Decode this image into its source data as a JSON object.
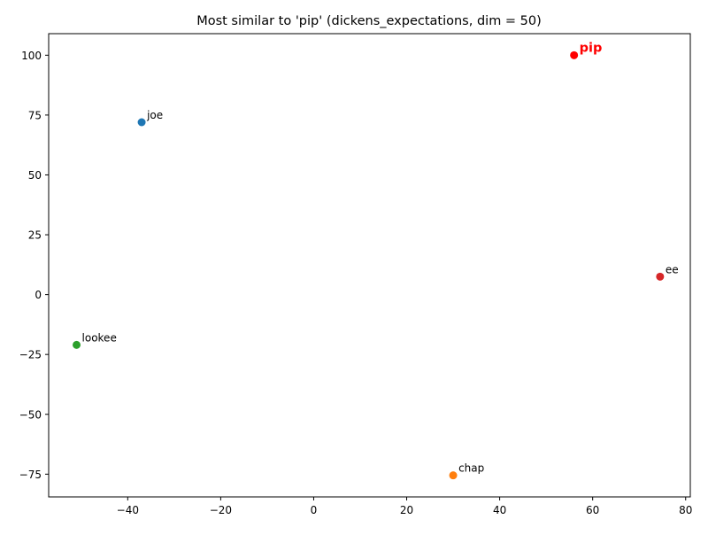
{
  "chart_data": {
    "type": "scatter",
    "title": "Most similar to 'pip' (dickens_expectations, dim = 50)",
    "xlabel": "",
    "ylabel": "",
    "xlim": [
      -57,
      81
    ],
    "ylim": [
      -84.5,
      109
    ],
    "grid": false,
    "legend": "none",
    "x_ticks": [
      -40,
      -20,
      0,
      20,
      40,
      60,
      80
    ],
    "y_ticks": [
      -75,
      -50,
      -25,
      0,
      25,
      50,
      75,
      100
    ],
    "x_tick_labels": [
      "−40",
      "−20",
      "0",
      "20",
      "40",
      "60",
      "80"
    ],
    "y_tick_labels": [
      "−75",
      "−50",
      "−25",
      "0",
      "25",
      "50",
      "75",
      "100"
    ],
    "points": [
      {
        "label": "joe",
        "x": -37,
        "y": 72,
        "color": "#1f77b4",
        "highlight": false
      },
      {
        "label": "chap",
        "x": 30,
        "y": -75.5,
        "color": "#ff7f0e",
        "highlight": false
      },
      {
        "label": "lookee",
        "x": -51,
        "y": -21,
        "color": "#2ca02c",
        "highlight": false
      },
      {
        "label": "ee",
        "x": 74.5,
        "y": 7.5,
        "color": "#d62728",
        "highlight": false
      },
      {
        "label": "pip",
        "x": 56,
        "y": 100,
        "color": "#ff0000",
        "highlight": true
      }
    ]
  }
}
